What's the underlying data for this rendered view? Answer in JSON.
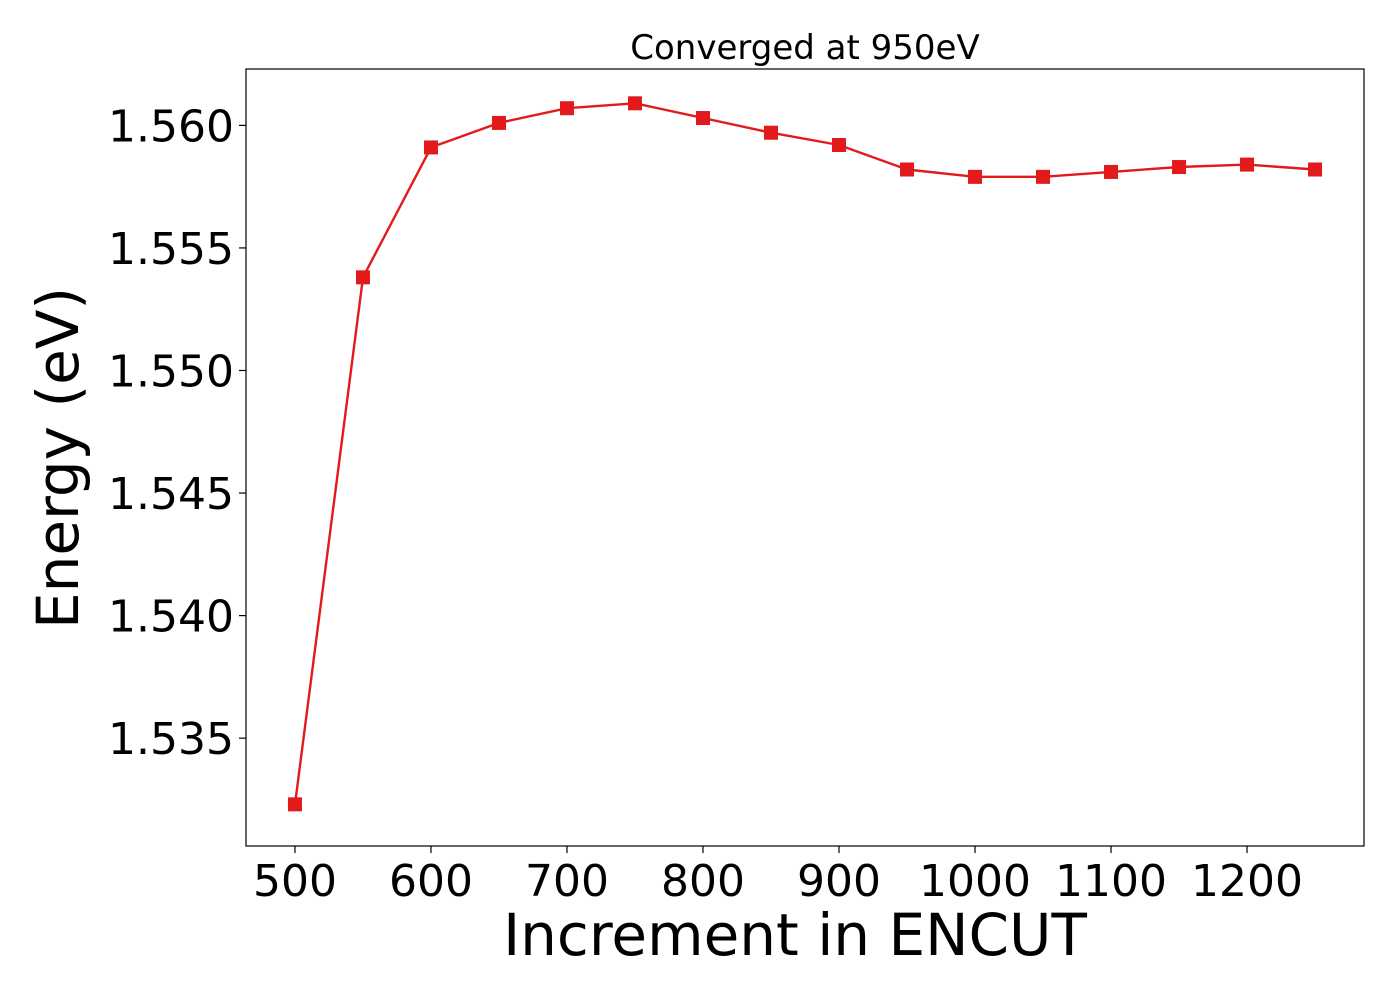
{
  "chart_data": {
    "type": "line",
    "title": "Converged at 950eV",
    "xlabel": "Increment in ENCUT",
    "ylabel": "Energy (eV)",
    "xlim": [
      464,
      1286
    ],
    "ylim": [
      1.5306,
      1.5623
    ],
    "x_ticks": [
      500,
      600,
      700,
      800,
      900,
      1000,
      1100,
      1200
    ],
    "y_ticks": [
      1.535,
      1.54,
      1.545,
      1.55,
      1.555,
      1.56
    ],
    "y_tick_decimals": 3,
    "grid": false,
    "marker": "square",
    "series": [
      {
        "color": "#e31a1c",
        "x": [
          500,
          550,
          600,
          650,
          700,
          750,
          800,
          850,
          900,
          950,
          1000,
          1050,
          1100,
          1150,
          1200,
          1250
        ],
        "y": [
          1.5323,
          1.5538,
          1.5591,
          1.5601,
          1.5607,
          1.5609,
          1.5603,
          1.5597,
          1.5592,
          1.5582,
          1.5579,
          1.5579,
          1.5581,
          1.5583,
          1.5584,
          1.5582
        ]
      }
    ]
  }
}
